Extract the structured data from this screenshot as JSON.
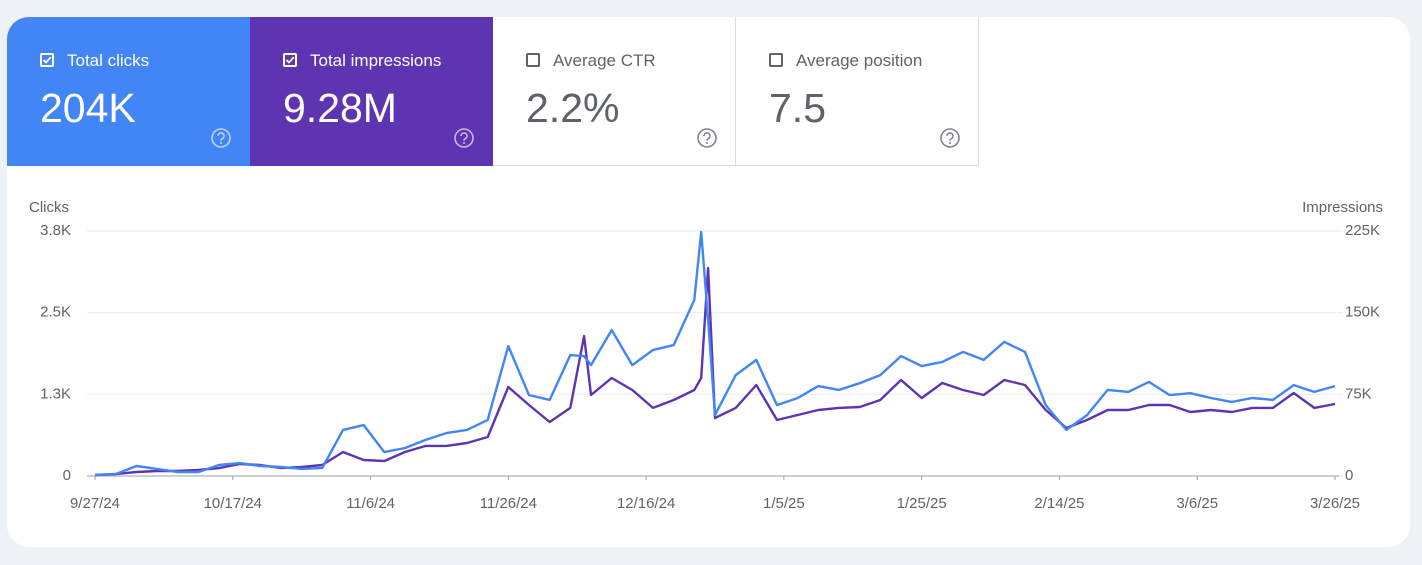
{
  "metrics": [
    {
      "label": "Total clicks",
      "value": "204K",
      "checked": true,
      "color": "#4285f4"
    },
    {
      "label": "Total impressions",
      "value": "9.28M",
      "checked": true,
      "color": "#5e35b1"
    },
    {
      "label": "Average CTR",
      "value": "2.2%",
      "checked": false,
      "color": "#ffffff"
    },
    {
      "label": "Average position",
      "value": "7.5",
      "checked": false,
      "color": "#ffffff"
    }
  ],
  "chart_data": {
    "type": "line",
    "x": [
      "9/27/24",
      "9/30/24",
      "10/3/24",
      "10/6/24",
      "10/9/24",
      "10/12/24",
      "10/15/24",
      "10/18/24",
      "10/21/24",
      "10/24/24",
      "10/27/24",
      "10/30/24",
      "11/2/24",
      "11/5/24",
      "11/8/24",
      "11/11/24",
      "11/14/24",
      "11/17/24",
      "11/20/24",
      "11/23/24",
      "11/26/24",
      "11/29/24",
      "12/2/24",
      "12/5/24",
      "12/7/24",
      "12/8/24",
      "12/11/24",
      "12/14/24",
      "12/17/24",
      "12/20/24",
      "12/23/24",
      "12/24/24",
      "12/25/24",
      "12/26/24",
      "12/29/24",
      "1/1/25",
      "1/4/25",
      "1/7/25",
      "1/10/25",
      "1/13/25",
      "1/16/25",
      "1/19/25",
      "1/22/25",
      "1/25/25",
      "1/28/25",
      "1/31/25",
      "2/3/25",
      "2/6/25",
      "2/9/25",
      "2/12/25",
      "2/15/25",
      "2/18/25",
      "2/21/25",
      "2/24/25",
      "2/27/25",
      "3/2/25",
      "3/5/25",
      "3/8/25",
      "3/11/25",
      "3/14/25",
      "3/17/25",
      "3/20/25",
      "3/23/25",
      "3/26/25"
    ],
    "xlim": [
      "9/27/24",
      "3/26/25"
    ],
    "xticks": [
      "9/27/24",
      "10/17/24",
      "11/6/24",
      "11/26/24",
      "12/16/24",
      "1/5/25",
      "1/25/25",
      "2/14/25",
      "3/6/25",
      "3/26/25"
    ],
    "ylim": [
      0,
      3800
    ],
    "yticks": [
      0,
      {
        "value": 1267,
        "label": "1.3K"
      },
      {
        "value": 2533,
        "label": "2.5K"
      },
      {
        "value": 3800,
        "label": "3.8K"
      }
    ],
    "y2lim": [
      0,
      225000
    ],
    "y2ticks": [
      0,
      {
        "value": 75000,
        "label": "75K"
      },
      {
        "value": 150000,
        "label": "150K"
      },
      {
        "value": 225000,
        "label": "225K"
      }
    ],
    "series": [
      {
        "name": "Clicks",
        "color": "#4285f4",
        "values": [
          15,
          30,
          155,
          110,
          60,
          60,
          170,
          200,
          155,
          140,
          110,
          125,
          715,
          790,
          370,
          435,
          560,
          665,
          715,
          870,
          2015,
          1255,
          1180,
          1875,
          1860,
          1720,
          2265,
          1720,
          1955,
          2030,
          2730,
          3785,
          2420,
          945,
          1565,
          1800,
          1100,
          1210,
          1395,
          1335,
          1440,
          1565,
          1860,
          1705,
          1770,
          1925,
          1800,
          2080,
          1925,
          1100,
          715,
          945,
          1335,
          1305,
          1460,
          1255,
          1285,
          1210,
          1150,
          1210,
          1180,
          1410,
          1305,
          1395
        ]
      },
      {
        "name": "Impressions",
        "color": "#5e35b1",
        "axis": "y2",
        "values": [
          900,
          1800,
          3700,
          4600,
          4600,
          5500,
          7300,
          11000,
          10100,
          7300,
          8300,
          10100,
          22000,
          14700,
          13800,
          22000,
          27600,
          27600,
          30300,
          35800,
          81700,
          65200,
          49600,
          62500,
          128600,
          74400,
          90000,
          79000,
          62500,
          69800,
          79000,
          90000,
          191000,
          53300,
          62500,
          83600,
          51400,
          56000,
          60600,
          62500,
          63400,
          69800,
          88200,
          71600,
          85400,
          79000,
          74400,
          88200,
          83600,
          60600,
          44100,
          51400,
          60600,
          60600,
          65200,
          65200,
          58800,
          60600,
          58800,
          62500,
          62500,
          76200,
          62500,
          66100
        ]
      }
    ]
  }
}
